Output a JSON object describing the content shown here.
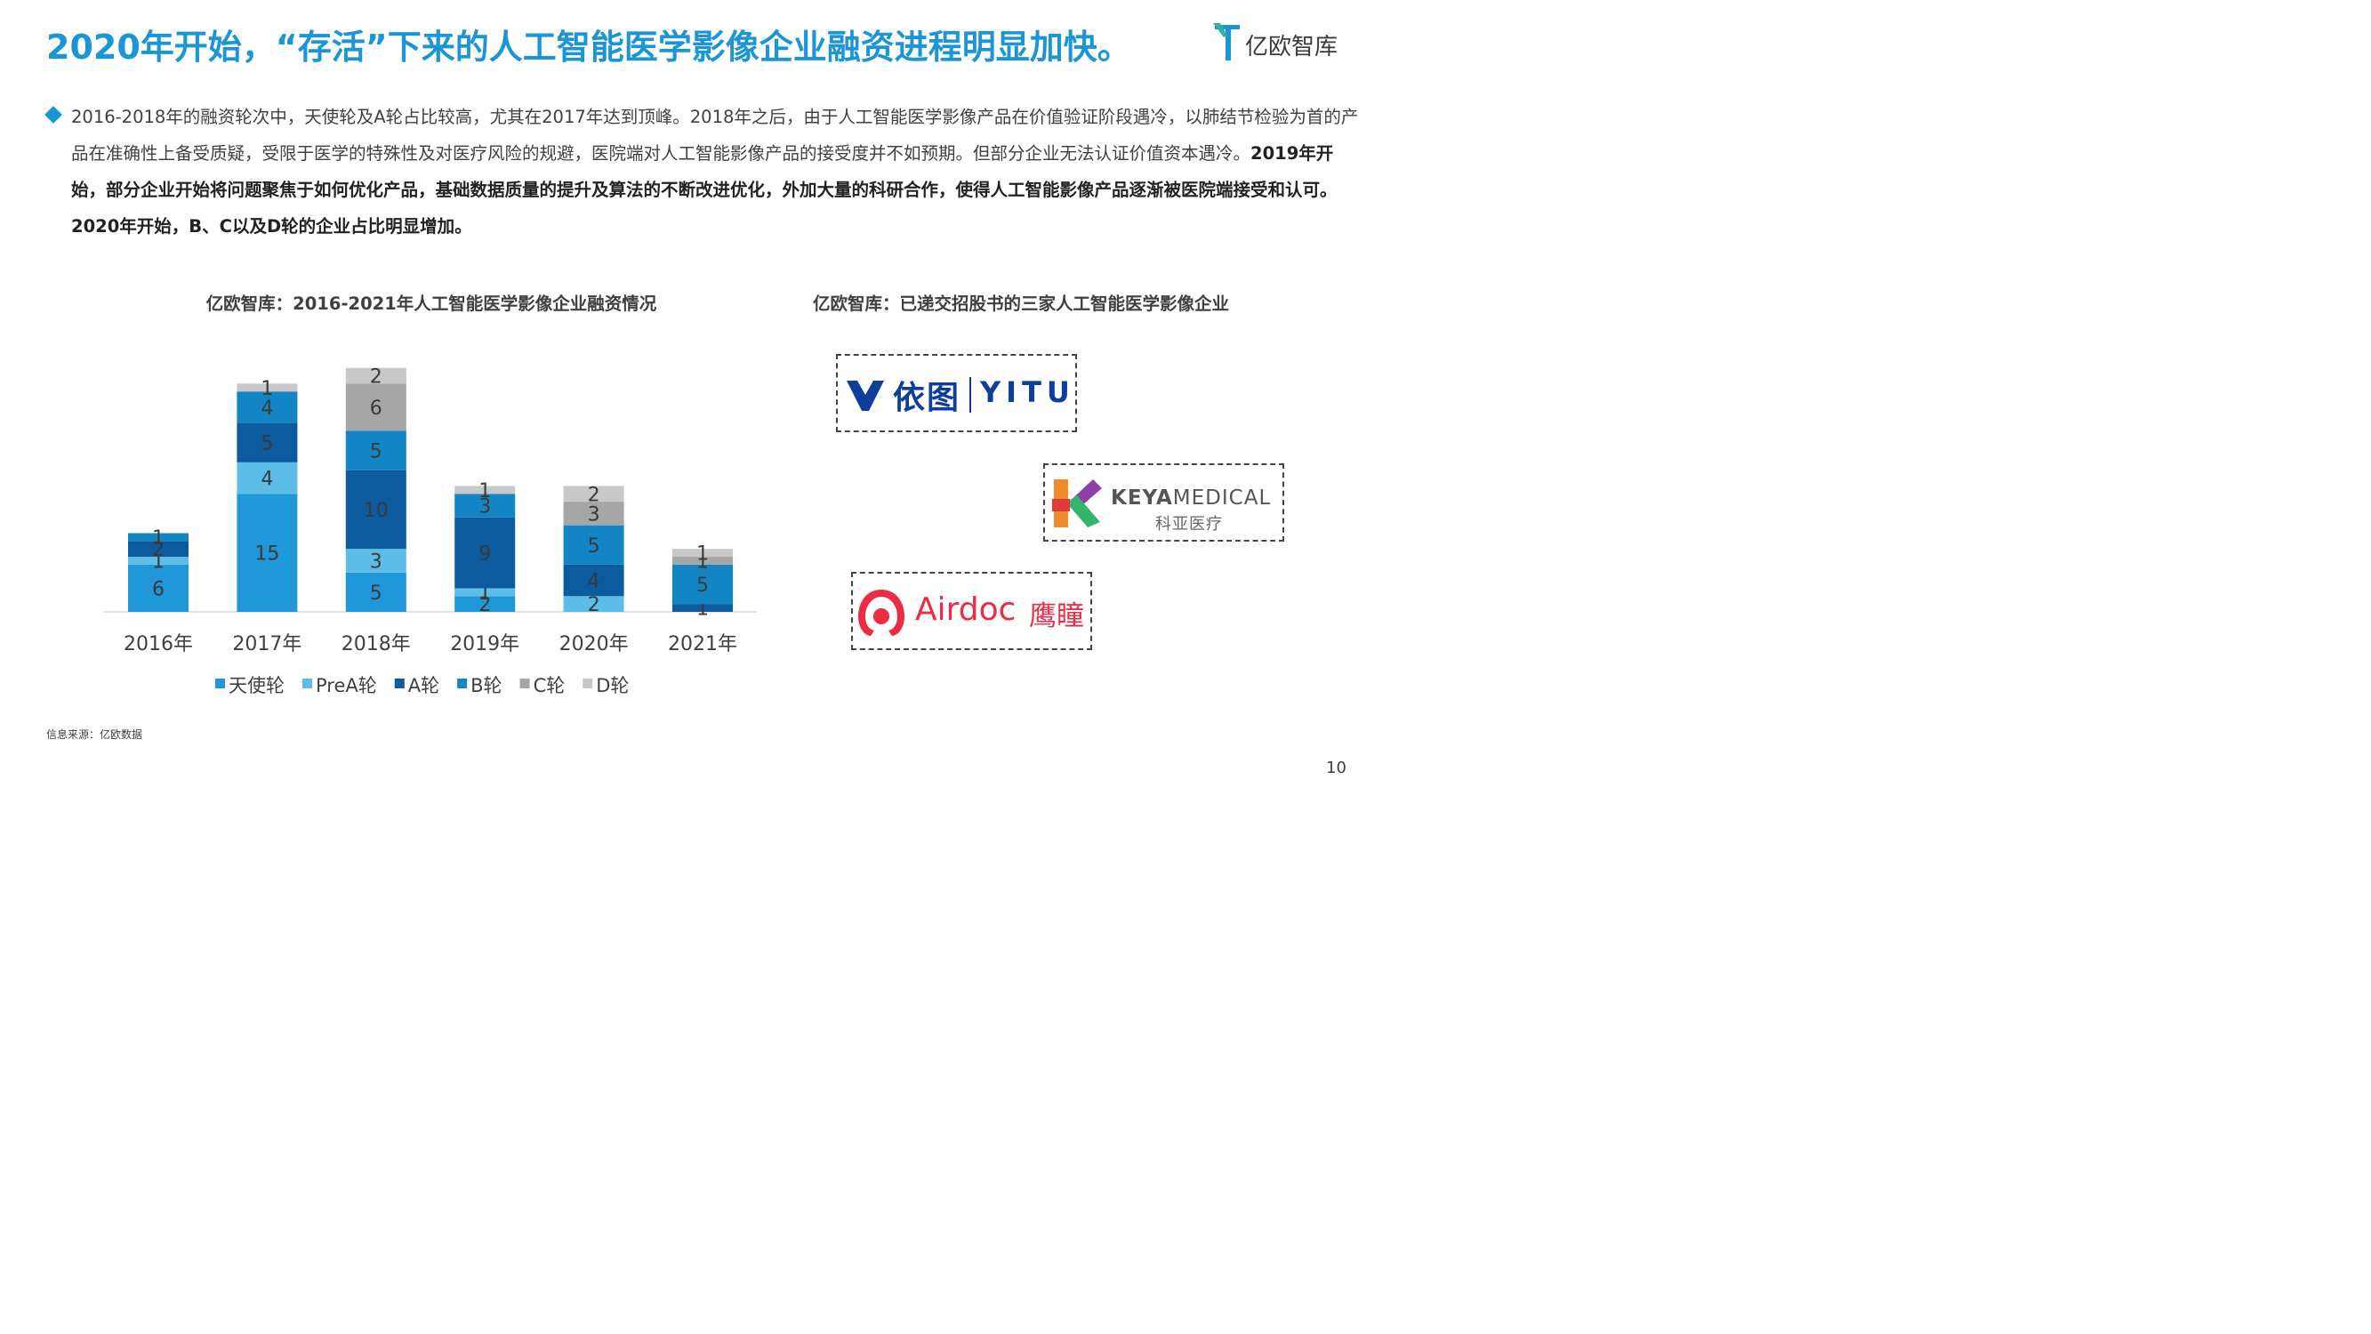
{
  "title": "2020年开始，“存活”下来的人工智能医学影像企业融资进程明显加快。",
  "brand": {
    "name": "亿欧智库",
    "icon": "yiou-logo-icon",
    "color": "#1b95d4"
  },
  "paragraph": {
    "normal": "2016-2018年的融资轮次中，天使轮及A轮占比较高，尤其在2017年达到顶峰。2018年之后，由于人工智能医学影像产品在价值验证阶段遇冷，以肺结节检验为首的产品在准确性上备受质疑，受限于医学的特殊性及对医疗风险的规避，医院端对人工智能影像产品的接受度并不如预期。但部分企业无法认证价值资本遇冷。",
    "bold": "2019年开始，部分企业开始将问题聚焦于如何优化产品，基础数据质量的提升及算法的不断改进优化，外加大量的科研合作，使得人工智能影像产品逐渐被医院端接受和认可。2020年开始，B、C以及D轮的企业占比明显增加。"
  },
  "chart_title": "亿欧智库：2016-2021年人工智能医学影像企业融资情况",
  "logos_title": "亿欧智库：已递交招股书的三家人工智能医学影像企业",
  "logos": {
    "yitu": {
      "cn": "依图",
      "en": "YITU"
    },
    "keya": {
      "en_bold": "KEYA",
      "en": "MEDICAL",
      "cn": "科亚医疗"
    },
    "airdoc": {
      "en": "Airdoc",
      "cn": "鹰瞳"
    }
  },
  "chart_data": {
    "type": "bar",
    "stacked": true,
    "categories": [
      "2016年",
      "2017年",
      "2018年",
      "2019年",
      "2020年",
      "2021年"
    ],
    "series": [
      {
        "name": "天使轮",
        "color": "#1f97d8",
        "values": [
          6,
          15,
          5,
          2,
          0,
          0
        ]
      },
      {
        "name": "PreA轮",
        "color": "#5bbde8",
        "values": [
          1,
          4,
          3,
          1,
          2,
          0
        ]
      },
      {
        "name": "A轮",
        "color": "#0b5b9e",
        "values": [
          2,
          5,
          10,
          9,
          4,
          1
        ]
      },
      {
        "name": "B轮",
        "color": "#1485c4",
        "values": [
          1,
          4,
          5,
          3,
          5,
          5
        ]
      },
      {
        "name": "C轮",
        "color": "#a6a6a6",
        "values": [
          0,
          0,
          6,
          0,
          3,
          1
        ]
      },
      {
        "name": "D轮",
        "color": "#c8c8c8",
        "values": [
          0,
          1,
          2,
          1,
          2,
          1
        ]
      }
    ],
    "legend_position": "bottom",
    "grid": false
  },
  "source": "信息来源：亿欧数据",
  "page_number": "10"
}
